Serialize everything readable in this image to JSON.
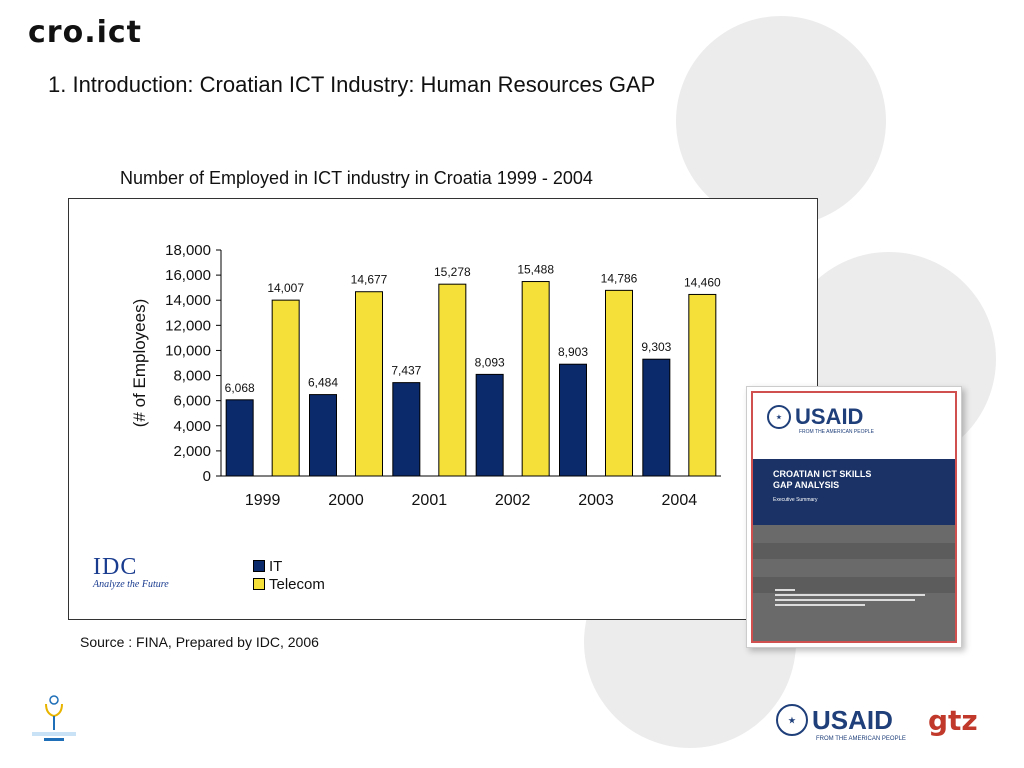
{
  "header": {
    "logo_text": "cro.ict",
    "title": "1. Introduction: Croatian ICT Industry: Human Resources GAP"
  },
  "chart_caption": "Number of Employed in ICT industry in Croatia 1999 - 2004",
  "chart_data": {
    "type": "bar",
    "categories": [
      "1999",
      "2000",
      "2001",
      "2002",
      "2003",
      "2004"
    ],
    "series": [
      {
        "name": "IT",
        "values": [
          6068,
          6484,
          7437,
          8093,
          8903,
          9303
        ],
        "labels": [
          "6,068",
          "6,484",
          "7,437",
          "8,093",
          "8,903",
          "9,303"
        ],
        "color": "#0b2a6b"
      },
      {
        "name": "Telecom",
        "values": [
          14007,
          14677,
          15278,
          15488,
          14786,
          14460
        ],
        "labels": [
          "14,007",
          "14,677",
          "15,278",
          "15,488",
          "14,786",
          "14,460"
        ],
        "color": "#f5e03a"
      }
    ],
    "ylabel": "(# of Employees)",
    "ylim": [
      0,
      18000
    ],
    "yticks": [
      "0",
      "2,000",
      "4,000",
      "6,000",
      "8,000",
      "10,000",
      "12,000",
      "14,000",
      "16,000",
      "18,000"
    ],
    "legend_position": "bottom-left",
    "grid": false
  },
  "idc_logo": {
    "mark": "IDC",
    "tagline": "Analyze the Future"
  },
  "source_text": "Source : FINA, Prepared by IDC, 2006",
  "report_cover": {
    "agency": "USAID",
    "agency_sub": "FROM THE AMERICAN PEOPLE",
    "title": "CROATIAN ICT SKILLS GAP ANALYSIS",
    "subtitle": "Executive Summary"
  },
  "footer": {
    "usaid": "USAID",
    "usaid_sub": "FROM THE AMERICAN PEOPLE",
    "gtz": "gtz"
  }
}
